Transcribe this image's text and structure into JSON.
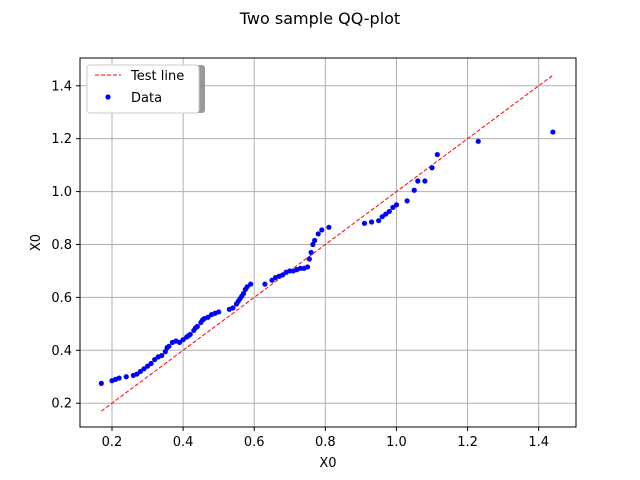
{
  "chart_data": {
    "type": "scatter",
    "title": "Two sample QQ-plot",
    "xlabel": "X0",
    "ylabel": "X0",
    "xlim": [
      0.11,
      1.505
    ],
    "ylim": [
      0.11,
      1.505
    ],
    "xticks": [
      0.2,
      0.4,
      0.6,
      0.8,
      1.0,
      1.2,
      1.4
    ],
    "xtick_labels": [
      "0.2",
      "0.4",
      "0.6",
      "0.8",
      "1.0",
      "1.2",
      "1.4"
    ],
    "yticks": [
      0.2,
      0.4,
      0.6,
      0.8,
      1.0,
      1.2,
      1.4
    ],
    "ytick_labels": [
      "0.2",
      "0.4",
      "0.6",
      "0.8",
      "1.0",
      "1.2",
      "1.4"
    ],
    "grid": true,
    "legend_position": "top-left",
    "series": [
      {
        "name": "Test line",
        "kind": "line",
        "style": "dashed",
        "color": "#ff0000",
        "x": [
          0.17,
          1.44
        ],
        "y": [
          0.17,
          1.44
        ]
      },
      {
        "name": "Data",
        "kind": "scatter",
        "color": "#0000ff",
        "x": [
          0.17,
          0.2,
          0.21,
          0.22,
          0.24,
          0.26,
          0.27,
          0.28,
          0.29,
          0.3,
          0.31,
          0.32,
          0.33,
          0.34,
          0.35,
          0.355,
          0.36,
          0.37,
          0.38,
          0.39,
          0.4,
          0.41,
          0.415,
          0.42,
          0.43,
          0.435,
          0.44,
          0.45,
          0.455,
          0.46,
          0.47,
          0.48,
          0.49,
          0.5,
          0.53,
          0.54,
          0.55,
          0.555,
          0.56,
          0.565,
          0.57,
          0.575,
          0.58,
          0.59,
          0.63,
          0.65,
          0.66,
          0.67,
          0.68,
          0.69,
          0.7,
          0.71,
          0.72,
          0.73,
          0.74,
          0.75,
          0.755,
          0.76,
          0.765,
          0.77,
          0.78,
          0.79,
          0.81,
          0.91,
          0.93,
          0.95,
          0.96,
          0.97,
          0.98,
          0.99,
          1.0,
          1.03,
          1.05,
          1.06,
          1.08,
          1.1,
          1.115,
          1.23,
          1.44
        ],
        "y": [
          0.275,
          0.285,
          0.29,
          0.295,
          0.3,
          0.305,
          0.31,
          0.32,
          0.33,
          0.34,
          0.35,
          0.365,
          0.375,
          0.38,
          0.395,
          0.41,
          0.415,
          0.43,
          0.435,
          0.43,
          0.44,
          0.45,
          0.455,
          0.46,
          0.475,
          0.485,
          0.49,
          0.505,
          0.515,
          0.52,
          0.525,
          0.535,
          0.54,
          0.545,
          0.555,
          0.56,
          0.575,
          0.585,
          0.595,
          0.605,
          0.615,
          0.63,
          0.64,
          0.65,
          0.65,
          0.665,
          0.675,
          0.68,
          0.685,
          0.695,
          0.7,
          0.7,
          0.705,
          0.71,
          0.71,
          0.715,
          0.745,
          0.77,
          0.8,
          0.815,
          0.84,
          0.855,
          0.865,
          0.88,
          0.885,
          0.89,
          0.905,
          0.915,
          0.925,
          0.94,
          0.95,
          0.965,
          1.005,
          1.04,
          1.04,
          1.09,
          1.14,
          1.19,
          1.225
        ]
      }
    ]
  }
}
